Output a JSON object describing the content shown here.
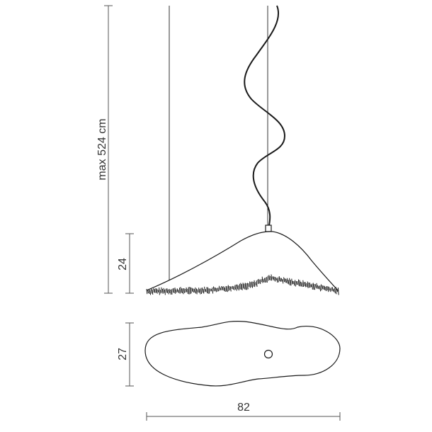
{
  "dimensions": {
    "max_height_label": "max 524 cm",
    "shade_height_label": "24",
    "shade_depth_label": "27",
    "width_label": "82"
  },
  "colors": {
    "line": "#1a1a1a",
    "dimension_line": "#555555",
    "text": "#333333"
  }
}
